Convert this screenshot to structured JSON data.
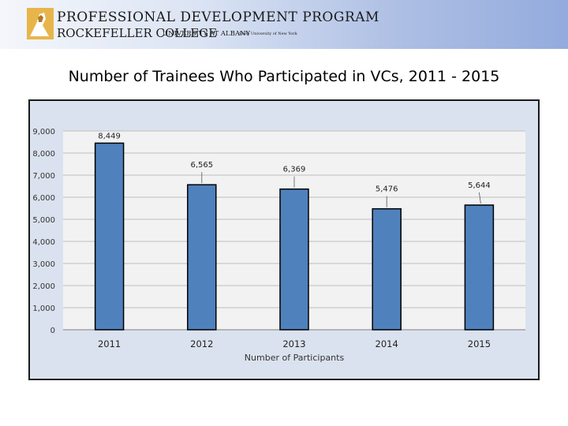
{
  "header": {
    "line1": "PROFESSIONAL DEVELOPMENT PROGRAM",
    "line2": "ROCKEFELLER COLLEGE",
    "line2b": "UNIVERSITY AT ALBANY",
    "line2c": "State University of New York"
  },
  "slide": {
    "title": "Number of Trainees Who Participated in VCs, 2011 - 2015"
  },
  "chart_data": {
    "type": "bar",
    "title": "",
    "xlabel": "Number of Participants",
    "ylabel": "",
    "categories": [
      "2011",
      "2012",
      "2013",
      "2014",
      "2015"
    ],
    "series": [
      {
        "values": [
          8449,
          6565,
          6369,
          5476,
          5644
        ]
      }
    ],
    "data_labels": [
      "8,449",
      "6,565",
      "6,369",
      "5,476",
      "5,644"
    ],
    "ylim": [
      0,
      9000
    ],
    "yticks": [
      0,
      1000,
      2000,
      3000,
      4000,
      5000,
      6000,
      7000,
      8000,
      9000
    ],
    "ytick_labels": [
      "0",
      "1,000",
      "2,000",
      "3,000",
      "4,000",
      "5,000",
      "6,000",
      "7,000",
      "8,000",
      "9,000"
    ],
    "grid": true,
    "colors": {
      "bar": "#4f81bd",
      "bar_edge": "#000000",
      "plot_bg": "#f2f2f2",
      "outer_bg": "#dbe2ef",
      "grid": "#bfbfbf"
    }
  }
}
